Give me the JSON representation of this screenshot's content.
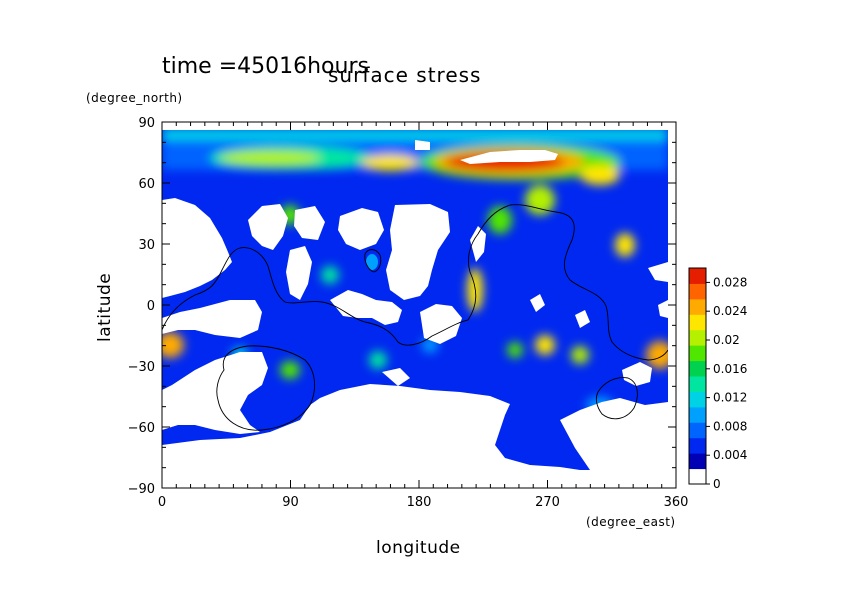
{
  "figure": {
    "time_label": "time =45016hours",
    "title": "surface stress",
    "y_unit": "(degree_north)",
    "x_unit": "(degree_east)",
    "xlabel": "longitude",
    "ylabel": "latitude"
  },
  "chart_data": {
    "type": "heatmap",
    "title": "surface stress",
    "xlabel": "longitude",
    "ylabel": "latitude",
    "x_unit": "degree_east",
    "y_unit": "degree_north",
    "xlim": [
      0,
      360
    ],
    "ylim": [
      -90,
      90
    ],
    "x_ticks": [
      "0",
      "90",
      "180",
      "270",
      "360"
    ],
    "y_ticks": [
      "90",
      "60",
      "30",
      "0",
      "−30",
      "−60",
      "−90"
    ],
    "colorbar": {
      "min": 0,
      "max": 0.03,
      "tick_labels": [
        "0.028",
        "0.024",
        "0.02",
        "0.016",
        "0.012",
        "0.008",
        "0.004",
        "0"
      ],
      "colors": [
        "#ffffff",
        "#0000b4",
        "#0028f0",
        "#0064ff",
        "#00a0ff",
        "#00d2e6",
        "#00e6a0",
        "#00d250",
        "#50e600",
        "#b4f000",
        "#ffe600",
        "#ffaa00",
        "#ff6400",
        "#e61e00"
      ]
    },
    "features": [
      {
        "lon": 120,
        "lat": 72,
        "value": 0.022
      },
      {
        "lon": 150,
        "lat": 70,
        "value": 0.018
      },
      {
        "lon": 255,
        "lat": 70,
        "value": 0.03
      },
      {
        "lon": 235,
        "lat": 65,
        "value": 0.028
      },
      {
        "lon": 300,
        "lat": 62,
        "value": 0.022
      },
      {
        "lon": 5,
        "lat": -20,
        "value": 0.026
      },
      {
        "lon": 352,
        "lat": -22,
        "value": 0.026
      },
      {
        "lon": 217,
        "lat": 5,
        "value": 0.022
      },
      {
        "lon": 328,
        "lat": 30,
        "value": 0.02
      },
      {
        "lon": 253,
        "lat": 50,
        "value": 0.017
      }
    ]
  }
}
